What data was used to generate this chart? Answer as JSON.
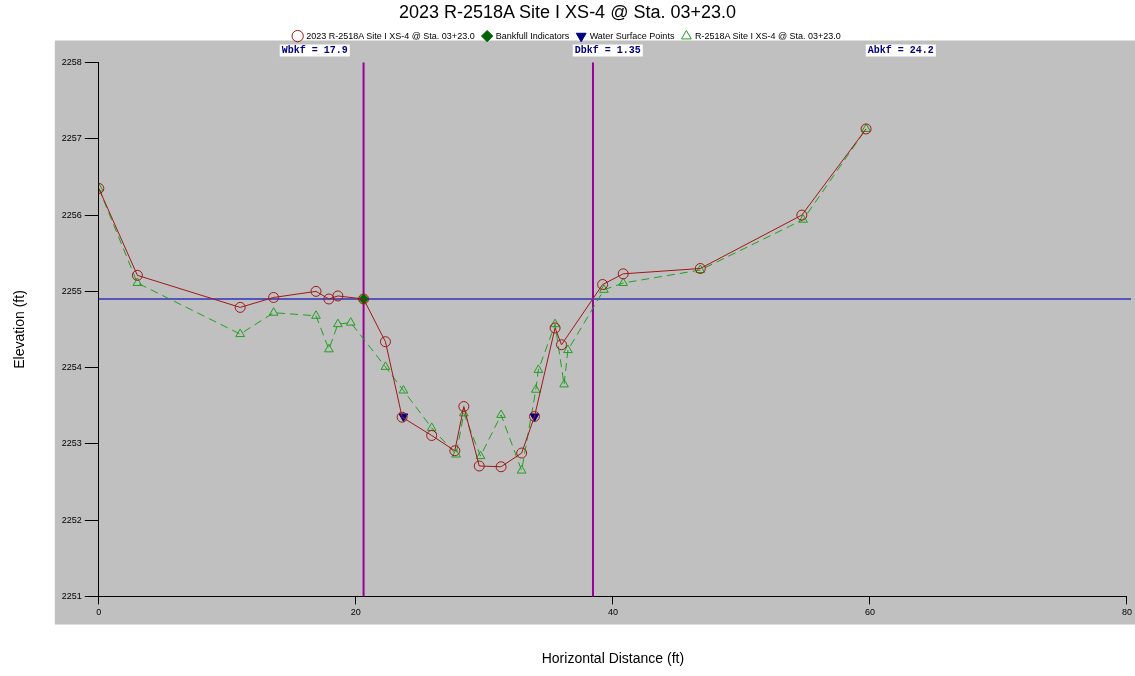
{
  "chart_data": {
    "type": "line",
    "title": "2023 R-2518A Site I XS-4 @ Sta. 03+23.0",
    "xlabel": "Horizontal Distance (ft)",
    "ylabel": "Elevation (ft)",
    "xlim": [
      0,
      80
    ],
    "xticks": [
      0,
      20,
      40,
      60,
      80
    ],
    "ylim": [
      2251,
      2258
    ],
    "yticks": [
      2251,
      2252,
      2253,
      2254,
      2255,
      2256,
      2257,
      2258
    ],
    "grid": false,
    "legend": "top",
    "annotations": [
      "Wbkf = 17.9",
      "Dbkf = 1.35",
      "Abkf = 24.2"
    ],
    "ref_lines": [
      {
        "axis": "x",
        "value": 20.6,
        "color": "#990099"
      },
      {
        "axis": "x",
        "value": 38.45,
        "color": "#990099"
      },
      {
        "axis": "y",
        "value": 2254.9,
        "color": "#5555bb"
      }
    ],
    "series": [
      {
        "name": "2023 R-2518A Site I XS-4 @ Sta. 03+23.0",
        "color": "#a01818",
        "marker": "circle",
        "line_style": "solid",
        "x": [
          0,
          3.0,
          11.0,
          13.6,
          16.9,
          17.9,
          18.6,
          20.6,
          22.3,
          23.6,
          25.9,
          27.7,
          28.4,
          29.6,
          31.3,
          32.9,
          33.9,
          35.5,
          36.0,
          39.2,
          40.8,
          46.8,
          54.7,
          59.7
        ],
        "values": [
          2256.35,
          2255.21,
          2254.79,
          2254.92,
          2255.0,
          2254.9,
          2254.94,
          2254.9,
          2254.34,
          2253.35,
          2253.11,
          2252.91,
          2253.49,
          2252.71,
          2252.7,
          2252.88,
          2253.36,
          2254.52,
          2254.3,
          2255.09,
          2255.23,
          2255.3,
          2256.0,
          2257.13
        ]
      },
      {
        "name": "Bankfull Indicators",
        "type": "scatter",
        "color": "#006400",
        "marker": "diamond",
        "x": [
          20.6
        ],
        "values": [
          2254.9
        ]
      },
      {
        "name": "Water Surface Points",
        "type": "scatter",
        "color": "#000080",
        "marker": "triangle-down",
        "x": [
          23.7,
          33.9
        ],
        "values": [
          2253.36,
          2253.36
        ]
      },
      {
        "name": "R-2518A Site I XS-4 @ Sta. 03+23.0",
        "color": "#20a020",
        "marker": "triangle",
        "line_style": "dashed",
        "x": [
          0,
          3.0,
          11.0,
          13.6,
          16.9,
          17.9,
          18.6,
          19.6,
          20.6,
          22.3,
          23.7,
          25.9,
          27.8,
          28.4,
          29.7,
          31.3,
          32.9,
          34.0,
          34.2,
          35.5,
          36.2,
          36.5,
          39.3,
          40.8,
          46.8,
          54.8,
          59.7
        ],
        "values": [
          2256.35,
          2255.11,
          2254.44,
          2254.72,
          2254.68,
          2254.24,
          2254.57,
          2254.59,
          null,
          2254.01,
          2253.7,
          2253.21,
          2252.86,
          2253.4,
          2252.84,
          2253.38,
          2252.65,
          2253.71,
          2253.97,
          2254.57,
          2253.78,
          2254.23,
          2255.02,
          2255.11,
          2255.28,
          2255.94,
          2257.13
        ]
      }
    ]
  }
}
